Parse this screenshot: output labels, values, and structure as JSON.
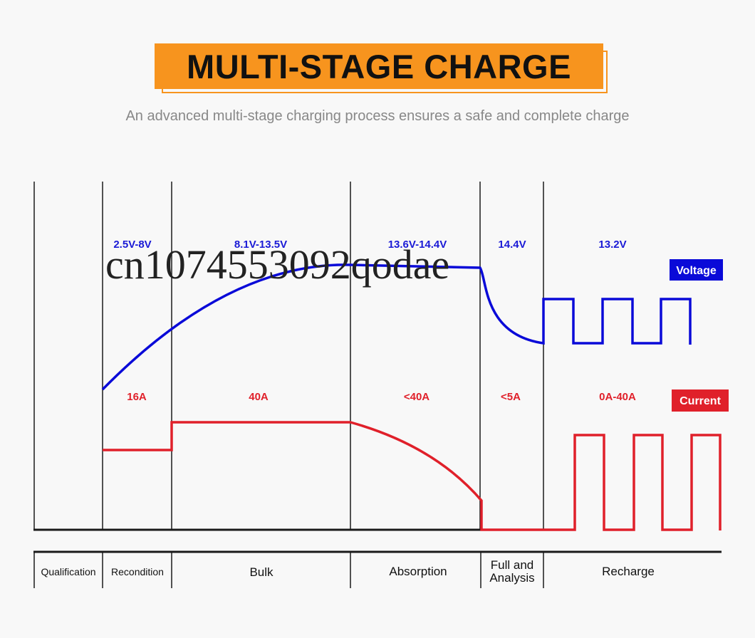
{
  "title": "MULTI-STAGE CHARGE",
  "subtitle": "An advanced multi-stage charging process ensures a safe and complete charge",
  "watermark": "cn1074553092qodae",
  "legend": {
    "voltage": "Voltage",
    "current": "Current",
    "voltage_color": "#0a0ad8",
    "current_color": "#e0202a"
  },
  "voltage_labels": [
    "2.5V-8V",
    "8.1V-13.5V",
    "13.6V-14.4V",
    "14.4V",
    "13.2V"
  ],
  "current_labels": [
    "16A",
    "40A",
    "<40A",
    "<5A",
    "0A-40A"
  ],
  "stages": [
    "Qualification",
    "Recondition",
    "Bulk",
    "Absorption",
    "Full and",
    "Analysis",
    "Recharge"
  ]
}
